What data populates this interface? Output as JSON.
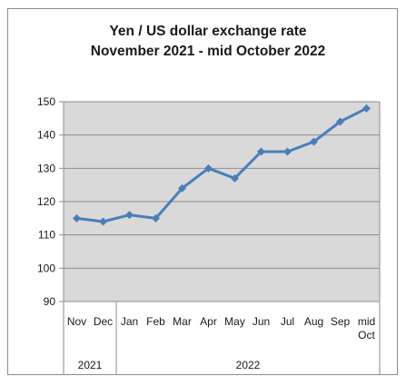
{
  "chart_data": {
    "type": "line",
    "title": [
      "Yen / US dollar exchange rate",
      "November 2021 - mid October 2022"
    ],
    "xlabel": "",
    "ylabel": "",
    "categories": [
      "Nov",
      "Dec",
      "Jan",
      "Feb",
      "Mar",
      "Apr",
      "May",
      "Jun",
      "Jul",
      "Aug",
      "Sep",
      "mid Oct"
    ],
    "category_label_lines": [
      [
        "Nov"
      ],
      [
        "Dec"
      ],
      [
        "Jan"
      ],
      [
        "Feb"
      ],
      [
        "Mar"
      ],
      [
        "Apr"
      ],
      [
        "May"
      ],
      [
        "Jun"
      ],
      [
        "Jul"
      ],
      [
        "Aug"
      ],
      [
        "Sep"
      ],
      [
        "mid",
        "Oct"
      ]
    ],
    "year_groups": [
      {
        "label": "2021",
        "categories": [
          "Nov",
          "Dec"
        ]
      },
      {
        "label": "2022",
        "categories": [
          "Jan",
          "Feb",
          "Mar",
          "Apr",
          "May",
          "Jun",
          "Jul",
          "Aug",
          "Sep",
          "mid Oct"
        ]
      }
    ],
    "series": [
      {
        "values": [
          115,
          114,
          116,
          115,
          124,
          130,
          127,
          135,
          135,
          138,
          144,
          148
        ]
      }
    ],
    "ylim": [
      90,
      150
    ],
    "yticks": [
      90,
      100,
      110,
      120,
      130,
      140,
      150
    ],
    "grid": true,
    "legend": "none",
    "colors": {
      "line": "#4a7ebb",
      "marker": "#4a7ebb",
      "plot_bg": "#d9d9d9",
      "grid": "#8c8c8c"
    }
  }
}
